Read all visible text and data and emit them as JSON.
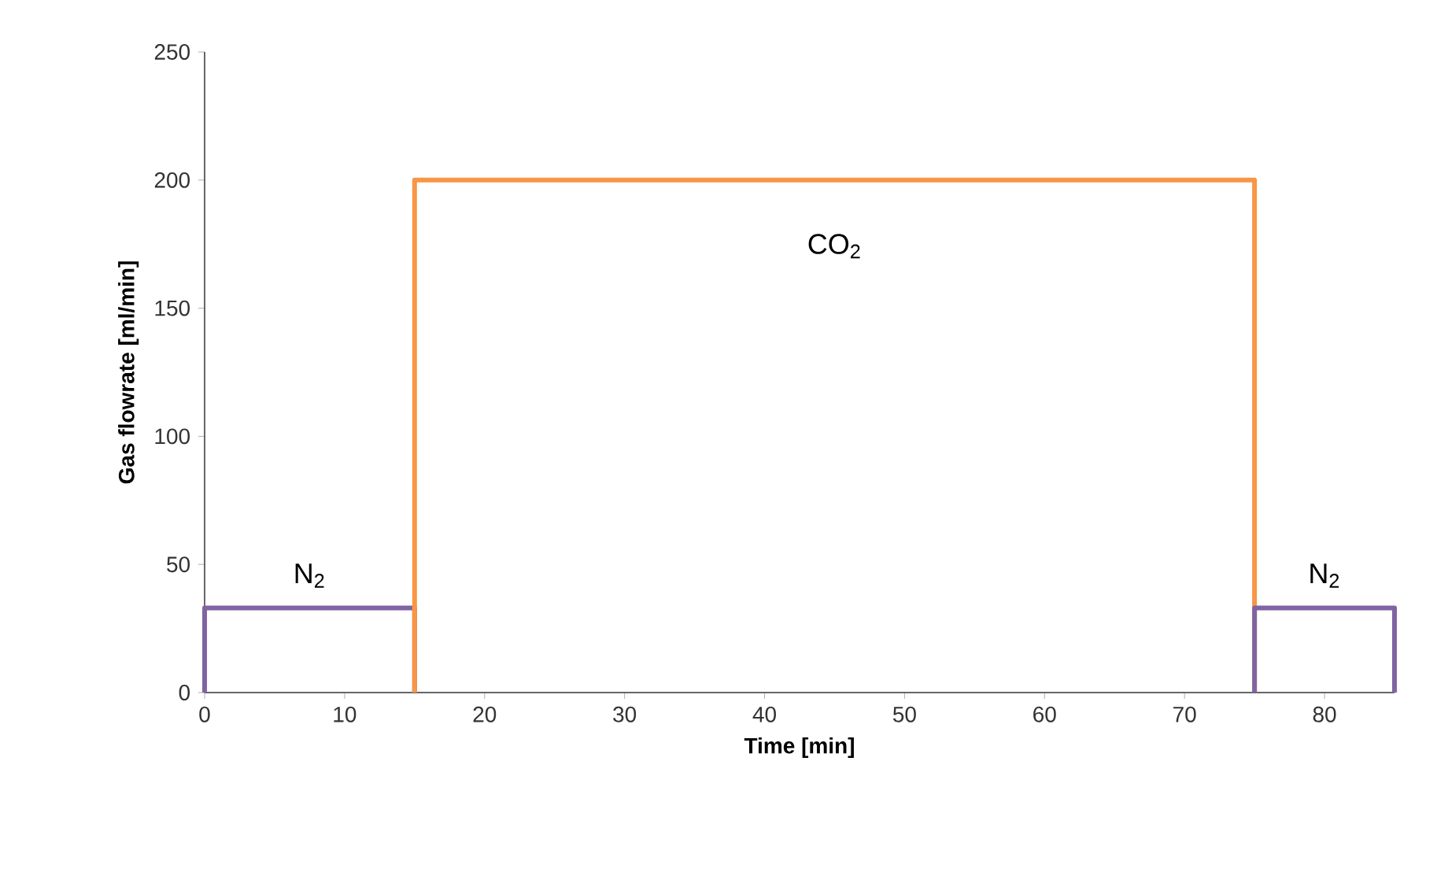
{
  "chart_data": {
    "type": "line",
    "xlabel": "Time [min]",
    "ylabel": "Gas flowrate [ml/min]",
    "series": [
      {
        "name": "N$_{2}$",
        "color": "#8064a2",
        "x": [
          0,
          0,
          15,
          15
        ],
        "values": [
          0,
          33,
          33,
          0
        ]
      },
      {
        "name": "CO$_{2}$",
        "color": "#f79646",
        "x": [
          15,
          15,
          75,
          75
        ],
        "values": [
          0,
          200,
          200,
          0
        ]
      },
      {
        "name": "N$_{2}$",
        "color": "#8064a2",
        "x": [
          75,
          75,
          85,
          85
        ],
        "values": [
          0,
          33,
          33,
          0
        ]
      }
    ],
    "xlim": [
      0,
      85
    ],
    "ylim": [
      0,
      250
    ],
    "xticks": [
      0,
      10,
      20,
      30,
      40,
      50,
      60,
      70,
      80
    ],
    "yticks": [
      0,
      50,
      100,
      150,
      200,
      250
    ],
    "grid": false,
    "legend": false,
    "marker": "none",
    "line_style": "solid"
  }
}
